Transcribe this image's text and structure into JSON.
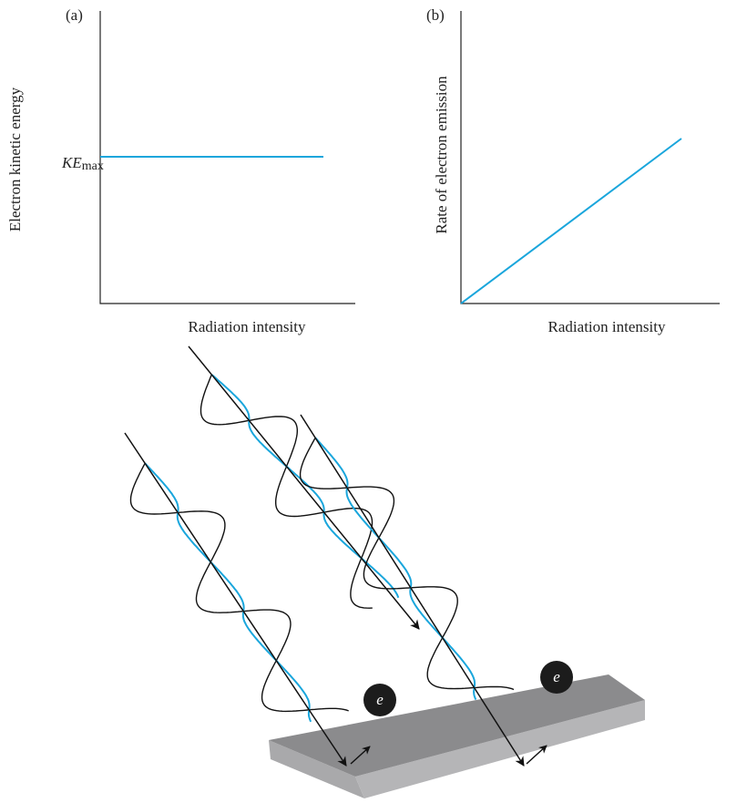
{
  "panels": {
    "a": {
      "label": "(a)",
      "y_label": "Electron kinetic energy",
      "level_label": {
        "main": "KE",
        "sub": "max"
      },
      "x_label": "Radiation intensity"
    },
    "b": {
      "label": "(b)",
      "y_label": "Rate of electron emission",
      "x_label": "Radiation intensity"
    }
  },
  "illustration": {
    "electrons": [
      "e",
      "e"
    ]
  }
}
